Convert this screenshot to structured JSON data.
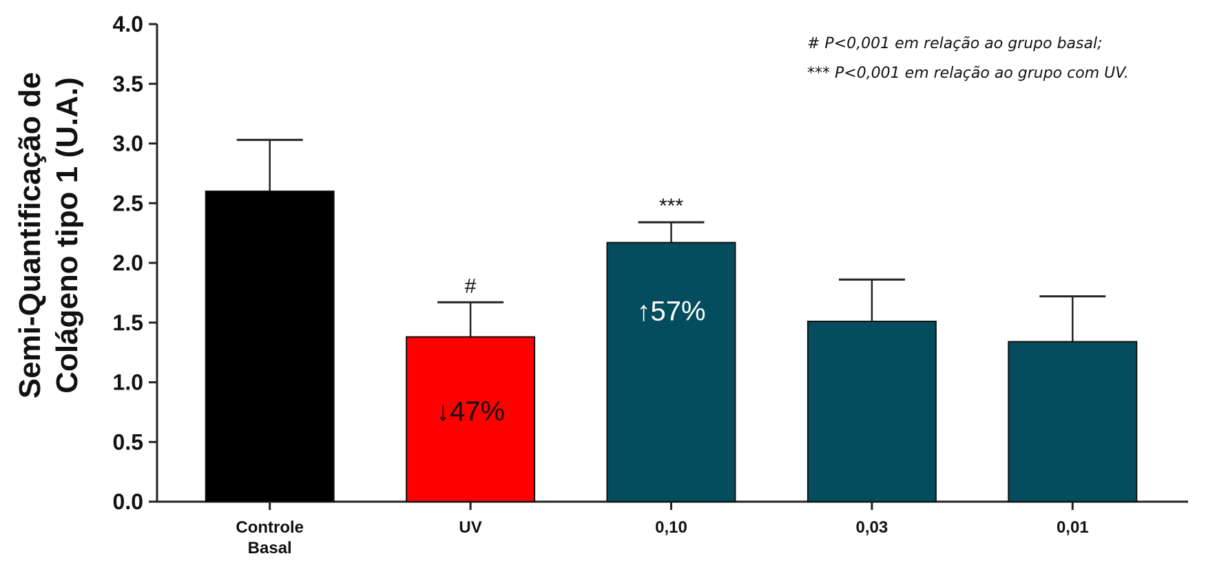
{
  "chart_data": {
    "type": "bar",
    "ylabel_lines": [
      "Semi-Quantificação de",
      "Colágeno tipo 1 (U.A.)"
    ],
    "ylim": [
      0,
      4.0
    ],
    "yticks": [
      "0.0",
      "0.5",
      "1.0",
      "1.5",
      "2.0",
      "2.5",
      "3.0",
      "3.5",
      "4.0"
    ],
    "grid": false,
    "categories": [
      [
        "Controle",
        "Basal"
      ],
      [
        "UV"
      ],
      [
        "0,10"
      ],
      [
        "0,03"
      ],
      [
        "0,01"
      ]
    ],
    "values": [
      2.6,
      1.38,
      2.17,
      1.51,
      1.34
    ],
    "errors": [
      0.43,
      0.29,
      0.17,
      0.35,
      0.38
    ],
    "bar_colors": [
      "#000000",
      "#ff0000",
      "#044d5e",
      "#044d5e",
      "#044d5e"
    ],
    "significance": [
      "",
      "#",
      "***",
      "",
      ""
    ],
    "bar_labels": [
      "",
      "↓47%",
      "↑57%",
      "",
      ""
    ],
    "bar_label_colors": [
      "",
      "#111111",
      "#ffffff",
      "",
      ""
    ],
    "annotations": [
      "# P<0,001 em relação ao grupo basal;",
      "*** P<0,001 em  relação ao grupo com UV."
    ]
  }
}
